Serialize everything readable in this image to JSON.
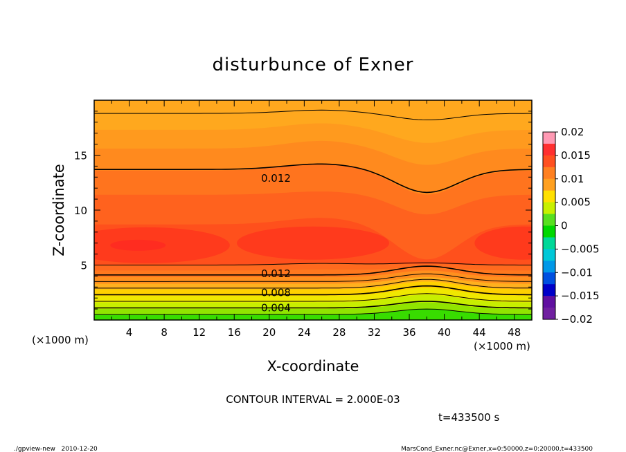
{
  "chart_data": {
    "type": "heatmap",
    "title": "disturbunce of Exner",
    "xlabel": "X-coordinate",
    "ylabel": "Z-coordinate",
    "x_unit_left": "(×1000 m)",
    "x_unit_right": "(×1000 m)",
    "xlim": [
      0,
      50
    ],
    "ylim": [
      0,
      20
    ],
    "x_ticks": [
      4,
      8,
      12,
      16,
      20,
      24,
      28,
      32,
      36,
      40,
      44,
      48
    ],
    "y_ticks": [
      5,
      10,
      15
    ],
    "colorbar": {
      "ticks": [
        "0.02",
        "0.015",
        "0.01",
        "0.005",
        "0",
        "−0.005",
        "−0.01",
        "−0.015",
        "−0.02"
      ],
      "vmin": -0.02,
      "vmax": 0.02,
      "colors": [
        "#ff9ab4",
        "#ff3030",
        "#ff5020",
        "#ff8020",
        "#ffa020",
        "#ffe000",
        "#c8f000",
        "#58e020",
        "#00d800",
        "#00d898",
        "#00c8d8",
        "#0098e8",
        "#0050e0",
        "#0000c8",
        "#6010a0",
        "#7020a0"
      ]
    },
    "contour_interval": 0.002,
    "contour_labels": [
      {
        "text": "0.012",
        "x": 19.5,
        "y": 12.9
      },
      {
        "text": "0.012",
        "x": 19.5,
        "y": 4.2
      },
      {
        "text": "0.008",
        "x": 19.5,
        "y": 2.5
      },
      {
        "text": "0.004",
        "x": 19.5,
        "y": 1.1
      }
    ],
    "description_fields": {
      "note": ""
    }
  },
  "footer": {
    "contour_interval_text": "CONTOUR INTERVAL = 2.000E-03",
    "time_text": "t=433500 s",
    "left_credit": "./gpview-new   2010-12-20",
    "right_credit": "MarsCond_Exner.nc@Exner,x=0:50000,z=0:20000,t=433500"
  },
  "colors": {
    "band_top": "#ffa81e",
    "band_upper": "#ff9020",
    "band_mid": "#ff6a1e",
    "band_core": "#ff4a1c",
    "band_peak": "#ff3020"
  }
}
